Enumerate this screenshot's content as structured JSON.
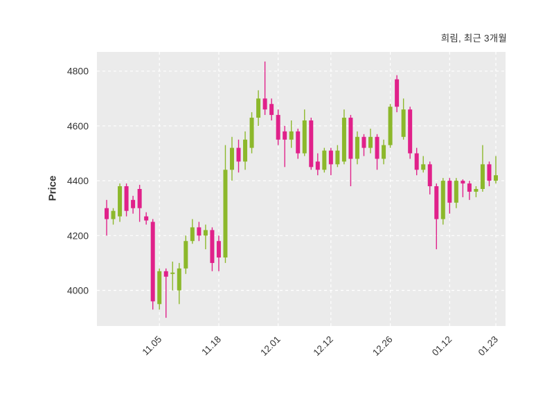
{
  "header": {
    "title": "희림, 최근 3개월"
  },
  "chart_data": {
    "type": "candlestick",
    "title": "희림, 최근 3개월",
    "ylabel": "Price",
    "xlabel": "",
    "ylim": [
      3870,
      4870
    ],
    "yticks": [
      4000,
      4200,
      4400,
      4600,
      4800
    ],
    "xticks": [
      {
        "index": 8,
        "label": "11.05"
      },
      {
        "index": 17,
        "label": "11.18"
      },
      {
        "index": 26,
        "label": "12.01"
      },
      {
        "index": 34,
        "label": "12.12"
      },
      {
        "index": 43,
        "label": "12.26"
      },
      {
        "index": 52,
        "label": "01.12"
      },
      {
        "index": 59,
        "label": "01.23"
      }
    ],
    "grid": true,
    "legend": "none",
    "colors": {
      "up": "#8CB82B",
      "down": "#E0218A",
      "panel": "#EBEBEB",
      "grid": "#FFFFFF",
      "text": "#333333"
    },
    "ohlc_order": [
      "open",
      "high",
      "low",
      "close"
    ],
    "ohlc": [
      [
        4300,
        4330,
        4200,
        4260
      ],
      [
        4260,
        4300,
        4240,
        4290
      ],
      [
        4270,
        4390,
        4250,
        4380
      ],
      [
        4380,
        4390,
        4270,
        4290
      ],
      [
        4330,
        4345,
        4280,
        4300
      ],
      [
        4370,
        4385,
        4250,
        4300
      ],
      [
        4270,
        4285,
        4240,
        4255
      ],
      [
        4250,
        4260,
        3930,
        3960
      ],
      [
        3950,
        4080,
        3930,
        4070
      ],
      [
        4070,
        4080,
        3900,
        4050
      ],
      [
        4060,
        4105,
        4000,
        4065
      ],
      [
        4000,
        4100,
        3950,
        4080
      ],
      [
        4080,
        4200,
        4060,
        4180
      ],
      [
        4180,
        4260,
        4170,
        4230
      ],
      [
        4230,
        4250,
        4180,
        4200
      ],
      [
        4200,
        4240,
        4150,
        4220
      ],
      [
        4220,
        4230,
        4070,
        4100
      ],
      [
        4180,
        4200,
        4070,
        4120
      ],
      [
        4120,
        4530,
        4100,
        4440
      ],
      [
        4440,
        4560,
        4400,
        4520
      ],
      [
        4520,
        4550,
        4430,
        4470
      ],
      [
        4470,
        4580,
        4440,
        4550
      ],
      [
        4520,
        4650,
        4500,
        4630
      ],
      [
        4630,
        4730,
        4600,
        4700
      ],
      [
        4700,
        4835,
        4640,
        4660
      ],
      [
        4680,
        4700,
        4620,
        4640
      ],
      [
        4640,
        4660,
        4530,
        4550
      ],
      [
        4580,
        4600,
        4450,
        4550
      ],
      [
        4550,
        4620,
        4520,
        4580
      ],
      [
        4580,
        4590,
        4480,
        4500
      ],
      [
        4500,
        4660,
        4490,
        4620
      ],
      [
        4620,
        4630,
        4440,
        4450
      ],
      [
        4470,
        4500,
        4420,
        4440
      ],
      [
        4440,
        4520,
        4430,
        4510
      ],
      [
        4510,
        4520,
        4420,
        4460
      ],
      [
        4460,
        4530,
        4450,
        4510
      ],
      [
        4470,
        4660,
        4460,
        4630
      ],
      [
        4630,
        4640,
        4380,
        4480
      ],
      [
        4480,
        4580,
        4460,
        4560
      ],
      [
        4560,
        4570,
        4490,
        4520
      ],
      [
        4520,
        4590,
        4500,
        4560
      ],
      [
        4560,
        4570,
        4440,
        4480
      ],
      [
        4480,
        4550,
        4460,
        4530
      ],
      [
        4530,
        4680,
        4520,
        4670
      ],
      [
        4770,
        4785,
        4650,
        4670
      ],
      [
        4560,
        4700,
        4550,
        4660
      ],
      [
        4660,
        4670,
        4480,
        4500
      ],
      [
        4500,
        4520,
        4420,
        4440
      ],
      [
        4440,
        4490,
        4430,
        4460
      ],
      [
        4460,
        4470,
        4350,
        4380
      ],
      [
        4380,
        4390,
        4150,
        4260
      ],
      [
        4260,
        4410,
        4240,
        4400
      ],
      [
        4400,
        4410,
        4280,
        4320
      ],
      [
        4320,
        4410,
        4300,
        4400
      ],
      [
        4400,
        4405,
        4340,
        4390
      ],
      [
        4390,
        4400,
        4330,
        4360
      ],
      [
        4360,
        4380,
        4340,
        4370
      ],
      [
        4370,
        4530,
        4360,
        4460
      ],
      [
        4460,
        4470,
        4380,
        4400
      ],
      [
        4400,
        4490,
        4390,
        4420
      ]
    ]
  }
}
